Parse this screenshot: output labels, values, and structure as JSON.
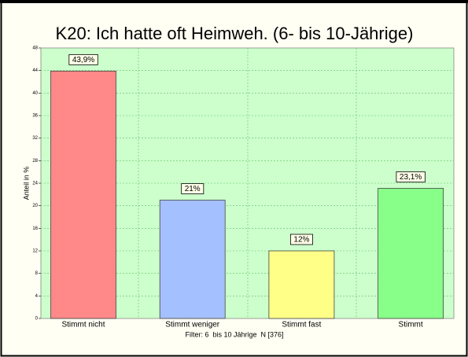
{
  "chart_data": {
    "type": "bar",
    "title": "K20: Ich hatte oft Heimweh. (6- bis 10-Jährige)",
    "y_label": "Anteil in %",
    "footer": "Filter: 6  bis 10 Jährige  N [376]",
    "categories": [
      "Stimmt nicht",
      "Stimmt weniger",
      "Stimmt fast",
      "Stimmt"
    ],
    "values": [
      43.9,
      21,
      12,
      23.1
    ],
    "value_labels": [
      "43,9%",
      "21%",
      "12%",
      "23,1%"
    ],
    "colors": [
      "#ff8888",
      "#a4c0ff",
      "#ffff88",
      "#88ff88"
    ],
    "ylim": [
      0,
      48
    ],
    "yticks": [
      0,
      4,
      8,
      12,
      16,
      20,
      24,
      28,
      32,
      36,
      40,
      44,
      48
    ],
    "grid": true
  }
}
